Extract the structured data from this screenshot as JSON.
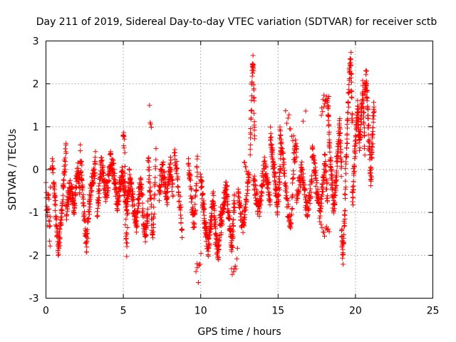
{
  "chart_data": {
    "type": "scatter",
    "title": "Day 211 of 2019, Sidereal Day-to-day VTEC variation (SDTVAR) for receiver sctb",
    "xlabel": "GPS time / hours",
    "ylabel": "SDTVAR / TECUs",
    "xlim": [
      0,
      25
    ],
    "ylim": [
      -3,
      3
    ],
    "x_ticks": [
      0,
      5,
      10,
      15,
      20,
      25
    ],
    "y_ticks": [
      -3,
      -2,
      -1,
      0,
      1,
      2,
      3
    ],
    "x_tick_labels": [
      "0",
      "5",
      "10",
      "15",
      "20",
      "25"
    ],
    "y_tick_labels": [
      "-3",
      "-2",
      "-1",
      "0",
      "1",
      "2",
      "3"
    ],
    "grid": true,
    "marker": "plus",
    "color": "#ff0000",
    "series": [
      {
        "name": "SDTVAR",
        "segments": [
          {
            "x0": 0.0,
            "x1": 0.3,
            "xs": [
              -0.3,
              -1.0,
              -1.3,
              -0.4,
              -1.1,
              -1.7,
              -0.2
            ],
            "n": 26
          },
          {
            "x0": 0.4,
            "x1": 1.3,
            "xs": [
              0.3,
              -0.4,
              -1.2,
              -1.8,
              -1.5,
              -0.8,
              -0.2,
              0.5
            ],
            "n": 110
          },
          {
            "x0": 1.3,
            "x1": 2.2,
            "xs": [
              -1.0,
              -0.7,
              -0.4,
              -0.6,
              -0.9,
              -0.3,
              0.0,
              -0.4
            ],
            "n": 110
          },
          {
            "x0": 2.2,
            "x1": 3.2,
            "xs": [
              0.4,
              -0.3,
              -1.2,
              -1.8,
              -1.0,
              -0.4,
              -0.2,
              0.2
            ],
            "n": 120
          },
          {
            "x0": 3.3,
            "x1": 4.3,
            "xs": [
              -1.0,
              -0.4,
              0.1,
              -0.2,
              -0.6,
              -0.3,
              0.2,
              0.0
            ],
            "n": 115
          },
          {
            "x0": 4.3,
            "x1": 5.4,
            "xs": [
              0.2,
              -0.3,
              -0.8,
              -0.4,
              -0.1,
              -0.5,
              -0.9,
              -0.3
            ],
            "n": 130
          },
          {
            "x0": 5.0,
            "x1": 5.3,
            "xs": [
              0.8,
              0.5,
              -1.3,
              -1.9,
              -0.6
            ],
            "n": 30
          },
          {
            "x0": 5.4,
            "x1": 6.6,
            "xs": [
              -0.2,
              -0.5,
              -1.0,
              -1.3,
              -0.6,
              -0.3,
              -1.2,
              -1.5,
              -0.9
            ],
            "n": 140
          },
          {
            "x0": 6.6,
            "x1": 7.1,
            "xs": [
              0.2,
              -0.3,
              -0.9,
              -1.6,
              -0.8,
              0.3
            ],
            "n": 50
          },
          {
            "x0": 6.7,
            "x1": 6.8,
            "xs": [
              1.35,
              1.1
            ],
            "n": 4
          },
          {
            "x0": 7.3,
            "x1": 8.2,
            "xs": [
              -0.6,
              -0.2,
              0.0,
              -0.4,
              -0.7,
              -0.2,
              0.1,
              -0.5
            ],
            "n": 100
          },
          {
            "x0": 8.3,
            "x1": 8.8,
            "xs": [
              0.6,
              0.1,
              -0.4,
              -0.9,
              -1.4
            ],
            "n": 40
          },
          {
            "x0": 9.2,
            "x1": 9.8,
            "xs": [
              0.2,
              -0.3,
              -0.8,
              -1.3,
              -0.7,
              0.3
            ],
            "n": 60
          },
          {
            "x0": 9.7,
            "x1": 10.0,
            "xs": [
              -2.2,
              -2.5,
              -1.8
            ],
            "n": 8
          },
          {
            "x0": 10.0,
            "x1": 11.3,
            "xs": [
              -0.2,
              -0.8,
              -1.4,
              -1.9,
              -1.2,
              -0.6,
              -1.6,
              -2.0,
              -0.9
            ],
            "n": 170
          },
          {
            "x0": 11.3,
            "x1": 12.2,
            "xs": [
              -1.4,
              -0.8,
              -0.4,
              -1.2,
              -1.8,
              -0.6
            ],
            "n": 120
          },
          {
            "x0": 12.0,
            "x1": 12.4,
            "xs": [
              -2.2,
              -2.4,
              -1.9
            ],
            "n": 8
          },
          {
            "x0": 12.4,
            "x1": 13.1,
            "xs": [
              -0.6,
              -1.0,
              -1.3,
              -0.7,
              -0.3
            ],
            "n": 60
          },
          {
            "x0": 12.8,
            "x1": 13.2,
            "xs": [
              0.1,
              -0.2
            ],
            "n": 10
          },
          {
            "x0": 13.2,
            "x1": 13.5,
            "xs": [
              0.5,
              1.3,
              2.1,
              2.7,
              1.7,
              0.8
            ],
            "n": 45
          },
          {
            "x0": 13.4,
            "x1": 14.5,
            "xs": [
              -0.2,
              -0.6,
              -1.0,
              -0.4,
              0.1,
              -0.3,
              -0.8
            ],
            "n": 110
          },
          {
            "x0": 14.5,
            "x1": 15.2,
            "xs": [
              0.8,
              0.4,
              0.0,
              -0.5,
              -0.9,
              -0.2,
              0.5
            ],
            "n": 90
          },
          {
            "x0": 15.1,
            "x1": 16.2,
            "xs": [
              0.9,
              0.4,
              -0.3,
              -1.0,
              -1.3,
              0.2,
              0.5
            ],
            "n": 90
          },
          {
            "x0": 15.5,
            "x1": 16.2,
            "xs": [
              1.3,
              0.9,
              0.5
            ],
            "n": 12
          },
          {
            "x0": 16.2,
            "x1": 17.2,
            "xs": [
              -0.6,
              -0.3,
              0.0,
              -0.5,
              -1.0,
              -0.7,
              -0.2
            ],
            "n": 90
          },
          {
            "x0": 16.6,
            "x1": 16.8,
            "xs": [
              1.2
            ],
            "n": 2
          },
          {
            "x0": 17.2,
            "x1": 18.2,
            "xs": [
              0.5,
              0.0,
              -0.6,
              -1.1,
              -0.4,
              0.2,
              -0.8
            ],
            "n": 110
          },
          {
            "x0": 17.8,
            "x1": 18.3,
            "xs": [
              -1.2,
              -1.6,
              -1.3
            ],
            "n": 10
          },
          {
            "x0": 17.8,
            "x1": 18.3,
            "xs": [
              1.2,
              1.8,
              1.5
            ],
            "n": 15
          },
          {
            "x0": 18.2,
            "x1": 19.1,
            "xs": [
              1.4,
              0.6,
              -0.2,
              -0.9,
              -0.4,
              0.4,
              1.0,
              0.0
            ],
            "n": 130
          },
          {
            "x0": 19.1,
            "x1": 19.8,
            "xs": [
              -1.5,
              -2.0,
              -1.0,
              0.2,
              1.2,
              2.2,
              2.7,
              1.0
            ],
            "n": 100
          },
          {
            "x0": 19.8,
            "x1": 20.6,
            "xs": [
              -0.8,
              0.0,
              0.8,
              1.4,
              0.6,
              1.2,
              1.9,
              0.4
            ],
            "n": 120
          },
          {
            "x0": 20.6,
            "x1": 21.2,
            "xs": [
              1.8,
              2.2,
              1.3,
              0.5,
              -0.2,
              0.8,
              1.5
            ],
            "n": 100
          }
        ]
      }
    ]
  }
}
